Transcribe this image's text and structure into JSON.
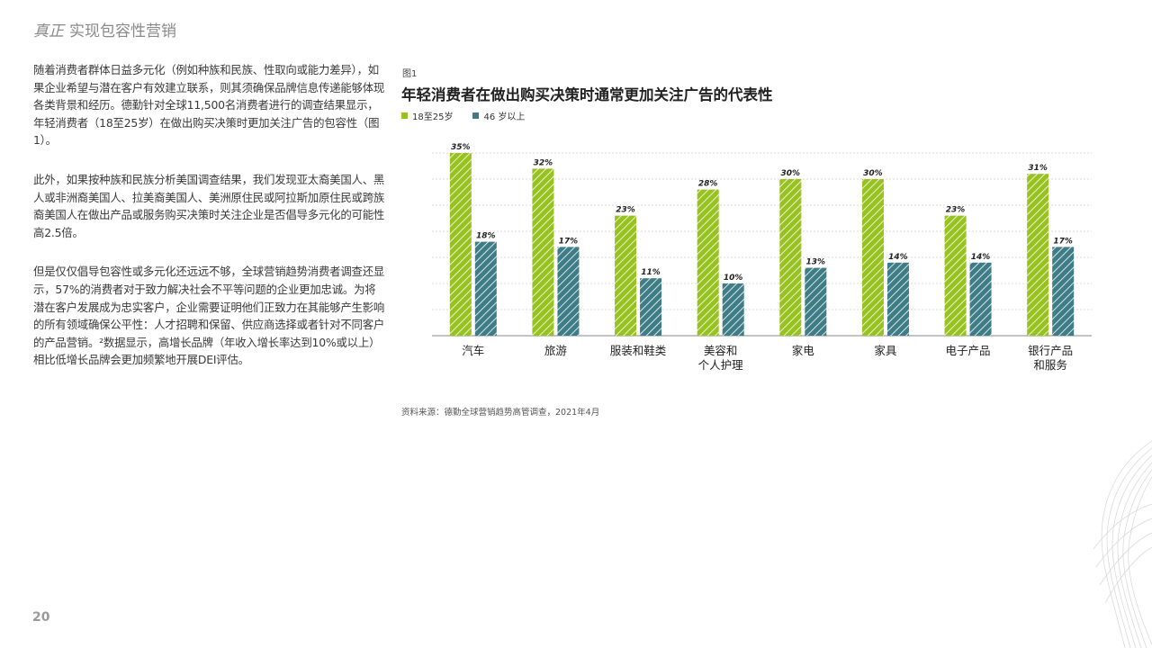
{
  "header": {
    "em": "真正",
    "title": "实现包容性营销"
  },
  "paragraphs": [
    "随着消费者群体日益多元化（例如种族和民族、性取向或能力差异），如果企业希望与潜在客户有效建立联系，则其须确保品牌信息传递能够体现各类背景和经历。德勤针对全球11,500名消费者进行的调查结果显示，年轻消费者（18至25岁）在做出购买决策时更加关注广告的包容性（图1）。",
    "此外，如果按种族和民族分析美国调查结果，我们发现亚太裔美国人、黑人或非洲裔美国人、拉美裔美国人、美洲原住民或阿拉斯加原住民或跨族裔美国人在做出产品或服务购买决策时关注企业是否倡导多元化的可能性高2.5倍。",
    "但是仅仅倡导包容性或多元化还远远不够，全球营销趋势消费者调查还显示，57%的消费者对于致力解决社会不平等问题的企业更加忠诚。为将潜在客户发展成为忠实客户，企业需要证明他们正致力在其能够产生影响的所有领域确保公平性：人才招聘和保留、供应商选择或者针对不同客户的产品营销。²数据显示，高增长品牌（年收入增长率达到10%或以上）相比低增长品牌会更加频繁地开展DEI评估。"
  ],
  "figure": {
    "label": "图1",
    "title": "年轻消费者在做出购买决策时通常更加关注广告的代表性"
  },
  "source": "资料来源：德勤全球营销趋势高管调查，2021年4月",
  "page_number": "20",
  "chart_data": {
    "type": "bar",
    "categories": [
      "汽车",
      "旅游",
      "服装和鞋类",
      "美容和\n个人护理",
      "家电",
      "家具",
      "电子产品",
      "银行产品\n和服务"
    ],
    "series": [
      {
        "name": "18至25岁",
        "values": [
          35,
          32,
          23,
          28,
          30,
          30,
          23,
          31
        ],
        "labels": [
          "35%",
          "32%",
          "23%",
          "28%",
          "30%",
          "30%",
          "23%",
          "31%"
        ],
        "color": "#97c21f"
      },
      {
        "name": "46 岁以上",
        "values": [
          18,
          17,
          11,
          10,
          13,
          14,
          14,
          17
        ],
        "labels": [
          "18%",
          "17%",
          "11%",
          "10%",
          "13%",
          "14%",
          "14%",
          "17%"
        ],
        "color": "#3f7d86"
      }
    ],
    "ylim": [
      0,
      35
    ],
    "grid": true,
    "legend": "top-left",
    "hatched": true
  }
}
